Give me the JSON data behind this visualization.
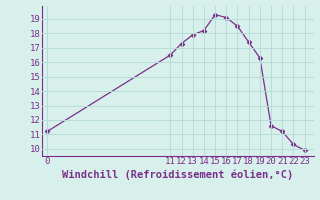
{
  "x": [
    0,
    11,
    12,
    13,
    14,
    15,
    16,
    17,
    18,
    19,
    20,
    21,
    22,
    23
  ],
  "y": [
    11.2,
    16.5,
    17.3,
    17.9,
    18.2,
    19.3,
    19.1,
    18.5,
    17.4,
    16.3,
    11.6,
    11.2,
    10.3,
    9.9
  ],
  "line_color": "#7b2f8a",
  "marker": "D",
  "marker_size": 2.5,
  "bg_color": "#d7f0ec",
  "grid_color": "#b8ddd8",
  "xlabel": "Windchill (Refroidissement éolien,°C)",
  "xlabel_fontsize": 7.5,
  "ylim": [
    9.5,
    19.9
  ],
  "yticks": [
    10,
    11,
    12,
    13,
    14,
    15,
    16,
    17,
    18,
    19
  ],
  "xticks": [
    0,
    11,
    12,
    13,
    14,
    15,
    16,
    17,
    18,
    19,
    20,
    21,
    22,
    23
  ],
  "tick_fontsize": 6.5,
  "tick_color": "#7b2f8a",
  "spine_color": "#7b2f8a",
  "xlim": [
    -0.5,
    23.8
  ]
}
